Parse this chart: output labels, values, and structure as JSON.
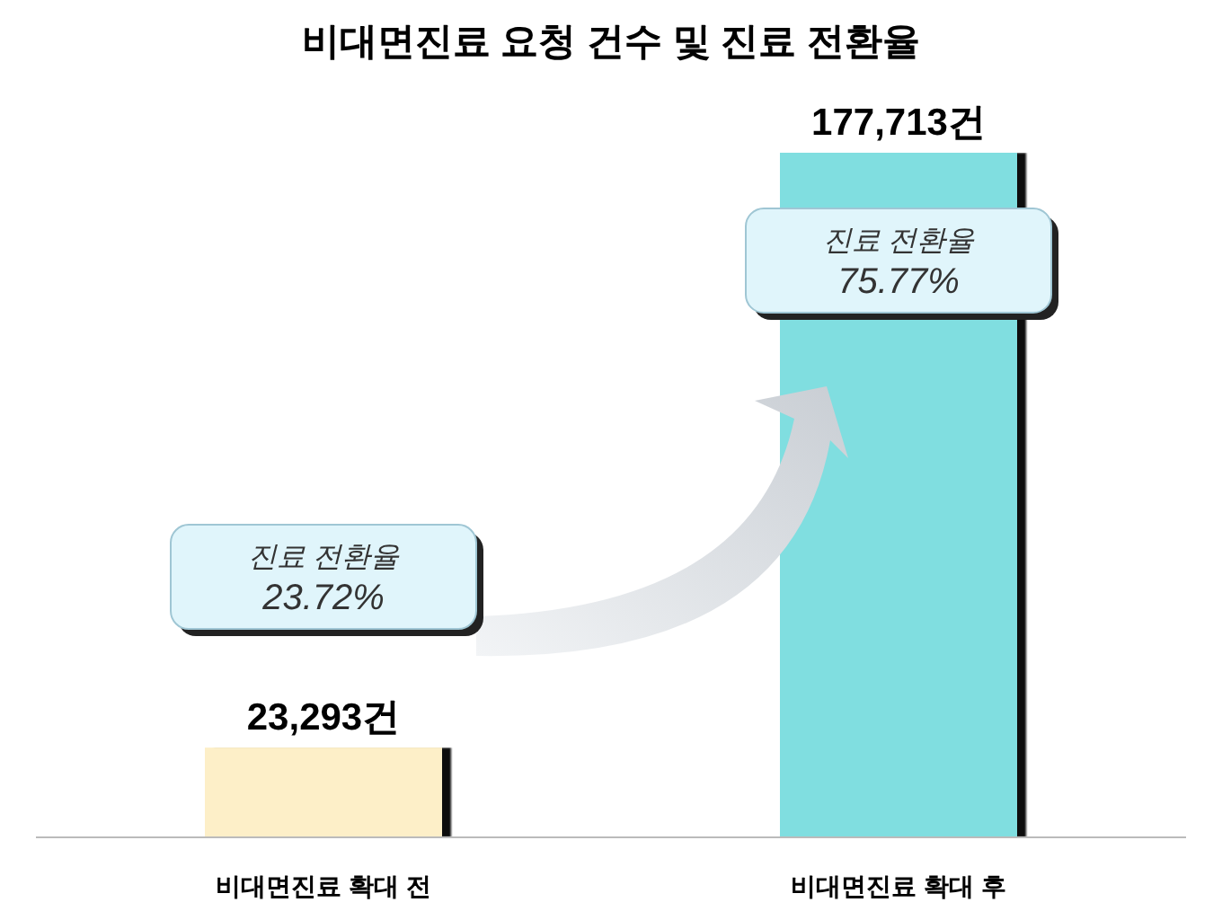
{
  "chart_data": {
    "type": "bar",
    "title": "비대면진료 요청 건수 및 진료 전환율",
    "categories": [
      "비대면진료 확대 전",
      "비대면진료 확대 후"
    ],
    "values": [
      23293,
      177713
    ],
    "colors": [
      "#fdefc8",
      "#80dee0"
    ],
    "value_labels": [
      "23,293건",
      "177,713건"
    ],
    "annotations": [
      "진료 전환율\n23.72%",
      "진료 전환율\n75.77%"
    ]
  }
}
